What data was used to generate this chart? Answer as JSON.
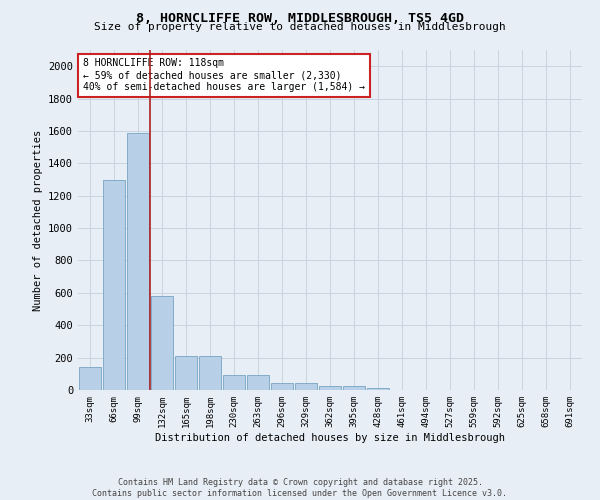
{
  "title1": "8, HORNCLIFFE ROW, MIDDLESBROUGH, TS5 4GD",
  "title2": "Size of property relative to detached houses in Middlesbrough",
  "xlabel": "Distribution of detached houses by size in Middlesbrough",
  "ylabel": "Number of detached properties",
  "categories": [
    "33sqm",
    "66sqm",
    "99sqm",
    "132sqm",
    "165sqm",
    "198sqm",
    "230sqm",
    "263sqm",
    "296sqm",
    "329sqm",
    "362sqm",
    "395sqm",
    "428sqm",
    "461sqm",
    "494sqm",
    "527sqm",
    "559sqm",
    "592sqm",
    "625sqm",
    "658sqm",
    "691sqm"
  ],
  "values": [
    140,
    1300,
    1590,
    580,
    210,
    210,
    95,
    95,
    45,
    45,
    22,
    22,
    15,
    0,
    0,
    0,
    0,
    0,
    0,
    0,
    0
  ],
  "bar_color": "#b8cfe8",
  "bar_edge_color": "#6699bb",
  "grid_color": "#c8d4e0",
  "background_color": "#e8eef5",
  "vline_color": "#aa2222",
  "vline_x_index": 2.5,
  "annotation_text": "8 HORNCLIFFE ROW: 118sqm\n← 59% of detached houses are smaller (2,330)\n40% of semi-detached houses are larger (1,584) →",
  "annotation_box_color": "#ffffff",
  "annotation_box_edge": "#cc2222",
  "footer1": "Contains HM Land Registry data © Crown copyright and database right 2025.",
  "footer2": "Contains public sector information licensed under the Open Government Licence v3.0.",
  "ylim": [
    0,
    2100
  ],
  "yticks": [
    0,
    200,
    400,
    600,
    800,
    1000,
    1200,
    1400,
    1600,
    1800,
    2000
  ]
}
